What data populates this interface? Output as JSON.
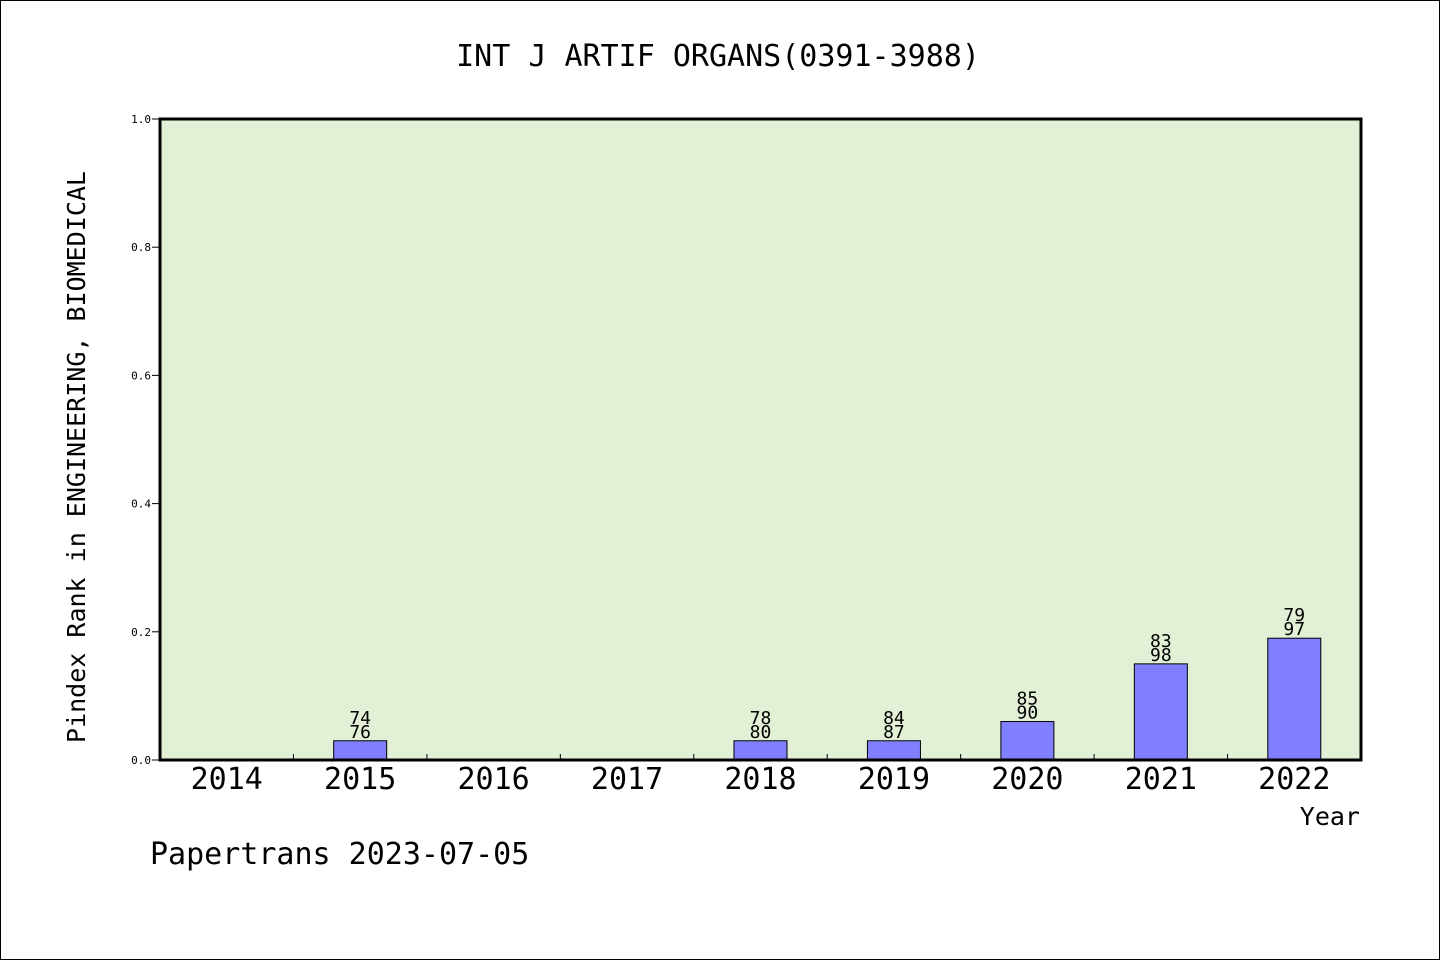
{
  "chart_data": {
    "type": "bar",
    "title": "INT J ARTIF ORGANS(0391-3988)",
    "xlabel": "Year",
    "ylabel": "Pindex Rank in ENGINEERING, BIOMEDICAL",
    "footer": "Papertrans 2023-07-05",
    "categories": [
      "2014",
      "2015",
      "2016",
      "2017",
      "2018",
      "2019",
      "2020",
      "2021",
      "2022"
    ],
    "values": [
      0,
      0.03,
      0,
      0,
      0.03,
      0.03,
      0.06,
      0.15,
      0.19
    ],
    "rank_labels": [
      "",
      "74",
      "",
      "",
      "78",
      "84",
      "85",
      "83",
      "79"
    ],
    "total_labels": [
      "",
      "76",
      "",
      "",
      "80",
      "87",
      "90",
      "98",
      "97"
    ],
    "ylim": [
      0,
      1.0
    ],
    "yticks": [
      "0.0",
      "0.2",
      "0.4",
      "0.6",
      "0.8",
      "1.0"
    ],
    "grid": false,
    "colors": {
      "plot_background": "#e2f0d6",
      "bar_fill": "#8080ff",
      "bar_stroke": "#000000"
    }
  }
}
